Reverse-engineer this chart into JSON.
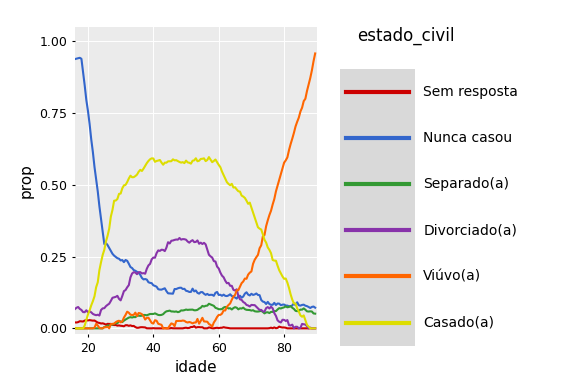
{
  "title": "estado_civil",
  "xlabel": "idade",
  "ylabel": "prop",
  "xlim": [
    16,
    90
  ],
  "ylim": [
    -0.02,
    1.05
  ],
  "xticks": [
    20,
    40,
    60,
    80
  ],
  "yticks": [
    0.0,
    0.25,
    0.5,
    0.75,
    1.0
  ],
  "bg_color": "#EBEBEB",
  "legend_bg": "#D9D9D9",
  "categories": [
    "Sem resposta",
    "Nunca casou",
    "Separado(a)",
    "Divorciado(a)",
    "Viúvo(a)",
    "Casado(a)"
  ],
  "colors": [
    "#CC0000",
    "#3366CC",
    "#339933",
    "#8833AA",
    "#FF6600",
    "#DDDD00"
  ],
  "linewidth": 1.5,
  "noise_seed": 42
}
